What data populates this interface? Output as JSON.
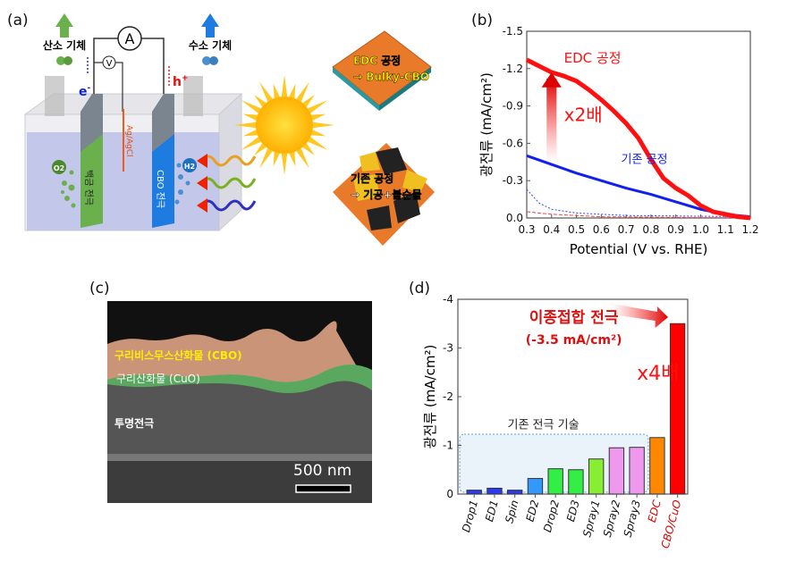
{
  "panels": {
    "a": "(a)",
    "b": "(b)",
    "c": "(c)",
    "d": "(d)"
  },
  "panel_a": {
    "oxygen_gas": "산소 기체",
    "hydrogen_gas": "수소 기체",
    "ammeter": "A",
    "voltmeter": "V",
    "electron": "e",
    "electron_sup": "-",
    "hole": "h",
    "hole_sup": "+",
    "reference": "Ag/AgCl",
    "o2": "O2",
    "h2": "H2",
    "pt_electrode": "백금 전극",
    "cbo_electrode": "CBO 전극",
    "edc_process": "EDC 공정",
    "edc_result": "→ Bulky-CBO",
    "conv_process": "기존 공정",
    "conv_result": "→ 기공+불순물",
    "colors": {
      "oxygen": "#6ab04c",
      "hydrogen": "#1e7be0",
      "tile": "#e87a2a",
      "pore": "#222222",
      "impurity": "#f0c020"
    }
  },
  "panel_c": {
    "cbo_layer": "구리비스무스산화물 (CBO)",
    "cuo_layer": "구리산화물 (CuO)",
    "substrate": "투명전극",
    "scale_bar": "500 nm"
  },
  "chart_data": [
    {
      "type": "line",
      "xlabel": "Potential (V vs. RHE)",
      "ylabel": "광전류 (mA/cm²)",
      "xlim": [
        0.3,
        1.2
      ],
      "ylim": [
        0.0,
        -1.5
      ],
      "y_inverted": true,
      "xticks": [
        "0.3",
        "0.4",
        "0.5",
        "0.6",
        "0.7",
        "0.8",
        "0.9",
        "1.0",
        "1.1",
        "1.2"
      ],
      "yticks": [
        "0.0",
        "-0.3",
        "-0.6",
        "-0.9",
        "-1.2",
        "-1.5"
      ],
      "annotations": {
        "edc": "EDC 공정",
        "conventional": "기존 공정",
        "gain": "x2배"
      },
      "series": [
        {
          "name": "EDC 공정",
          "color": "#ff1010",
          "style": "solid-thick",
          "x": [
            0.3,
            0.35,
            0.4,
            0.45,
            0.5,
            0.55,
            0.6,
            0.65,
            0.7,
            0.75,
            0.8,
            0.85,
            0.9,
            0.95,
            1.0,
            1.05,
            1.1,
            1.15,
            1.2
          ],
          "y": [
            -1.27,
            -1.22,
            -1.17,
            -1.14,
            -1.1,
            -1.03,
            -0.95,
            -0.86,
            -0.76,
            -0.64,
            -0.47,
            -0.32,
            -0.24,
            -0.18,
            -0.1,
            -0.05,
            -0.03,
            -0.01,
            0.0
          ]
        },
        {
          "name": "기존 공정",
          "color": "#1020ee",
          "style": "solid",
          "x": [
            0.3,
            0.4,
            0.5,
            0.6,
            0.7,
            0.8,
            0.9,
            1.0,
            1.1,
            1.2
          ],
          "y": [
            -0.5,
            -0.43,
            -0.36,
            -0.3,
            -0.24,
            -0.19,
            -0.13,
            -0.07,
            -0.03,
            -0.01
          ]
        },
        {
          "color": "#3344ee",
          "style": "dotted",
          "x": [
            0.3,
            0.35,
            0.4,
            0.5,
            0.7,
            1.2
          ],
          "y": [
            -0.23,
            -0.12,
            -0.07,
            -0.04,
            -0.02,
            -0.01
          ]
        },
        {
          "color": "#ee4444",
          "style": "dashed",
          "x": [
            0.3,
            0.4,
            0.6,
            1.2
          ],
          "y": [
            -0.05,
            -0.03,
            -0.01,
            0.0
          ]
        }
      ]
    },
    {
      "type": "bar",
      "ylabel": "광전류 (mA/cm²)",
      "ylim": [
        0,
        -4
      ],
      "y_inverted": true,
      "yticks": [
        "0",
        "-1",
        "-2",
        "-3",
        "-4"
      ],
      "categories": [
        "Drop1",
        "ED1",
        "Spin",
        "ED2",
        "Drop2",
        "ED3",
        "Spray1",
        "Spray2",
        "Spray3",
        "EDC",
        "CBO/CuO"
      ],
      "values": [
        -0.08,
        -0.12,
        -0.08,
        -0.32,
        -0.52,
        -0.5,
        -0.72,
        -0.95,
        -0.96,
        -1.16,
        -3.5
      ],
      "colors": [
        "#2a3cf0",
        "#2a3cf0",
        "#2a3cf0",
        "#3399ff",
        "#33ee44",
        "#33ee44",
        "#88ee33",
        "#ee99ee",
        "#ee99ee",
        "#ff8800",
        "#ff0000"
      ],
      "label_colors": [
        "#111",
        "#111",
        "#111",
        "#111",
        "#111",
        "#111",
        "#111",
        "#111",
        "#111",
        "#dd0000",
        "#dd0000"
      ],
      "annotations": {
        "hetero": "이종접합 전극",
        "hetero_value": "(-3.5 mA/cm²)",
        "gain": "x4배",
        "conventional_group": "기존 전극 기술"
      }
    }
  ]
}
